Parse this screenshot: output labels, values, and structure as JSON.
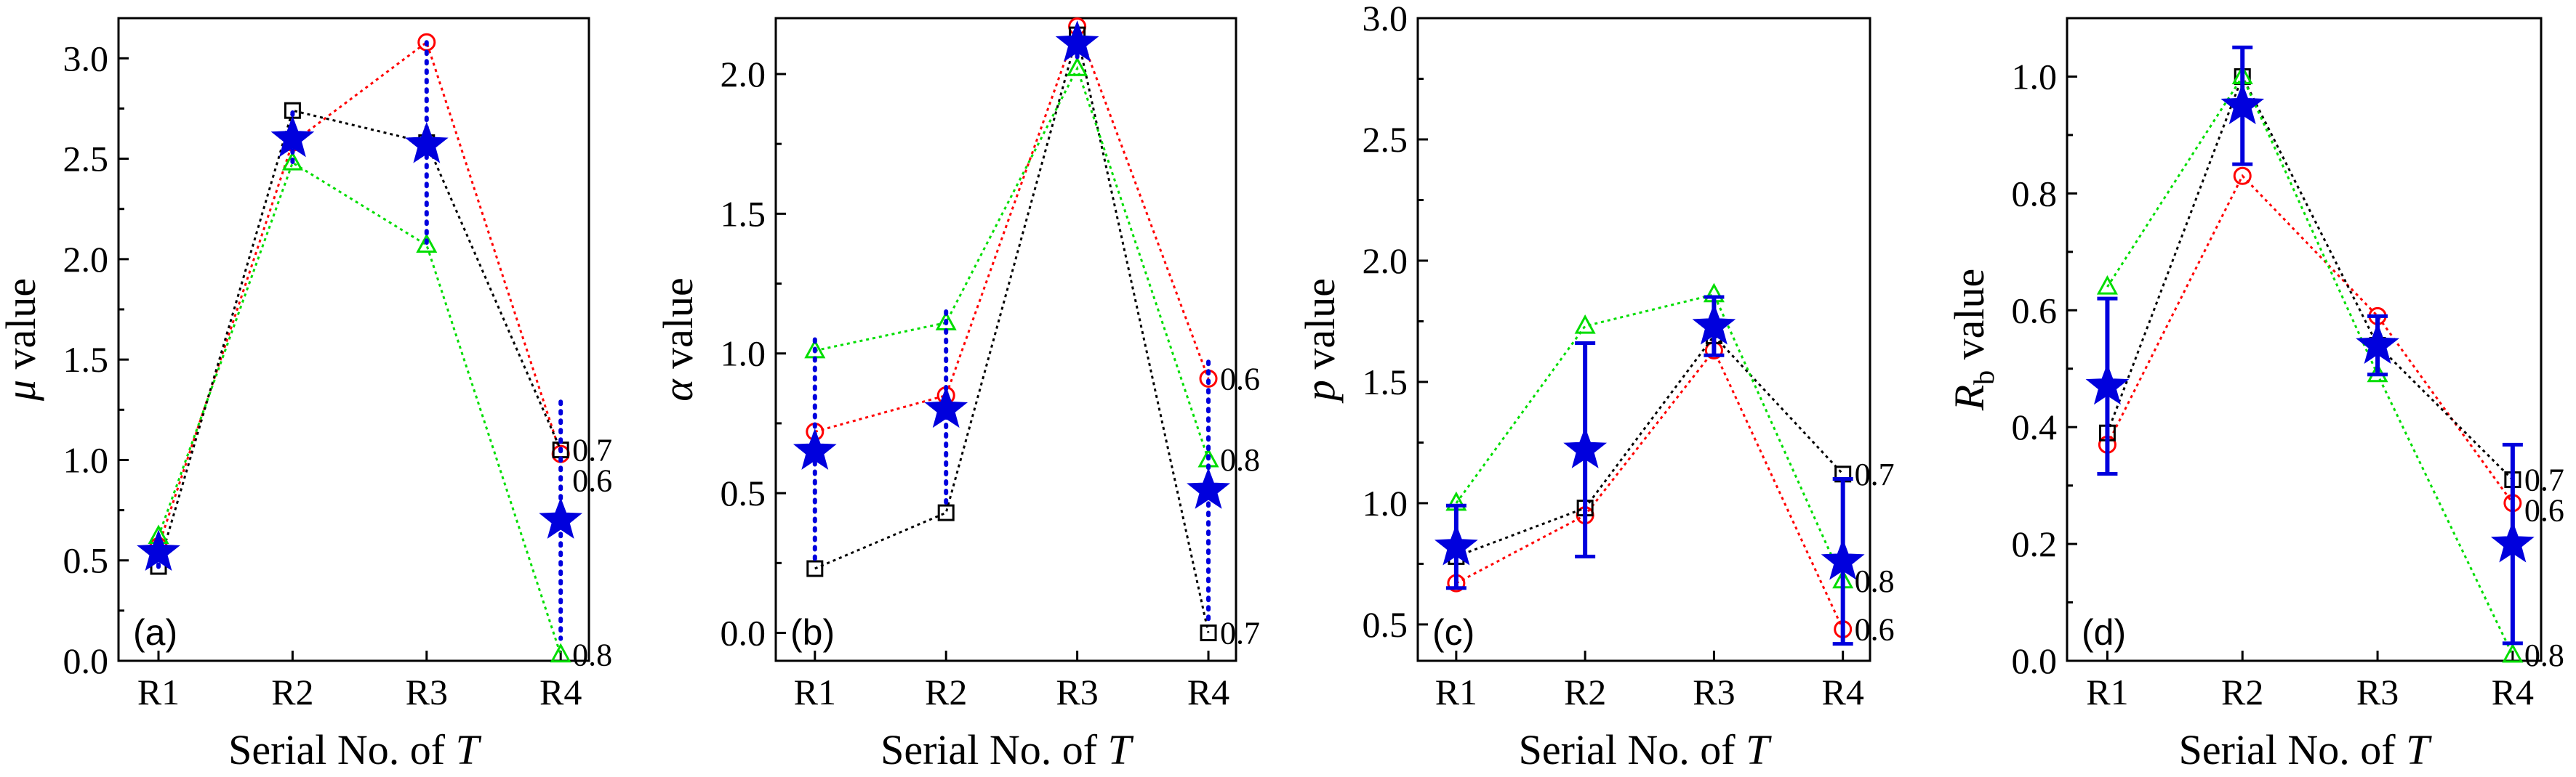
{
  "x_axis_label_prefix": "Serial No. of ",
  "x_axis_label_symbol": "T",
  "categories": [
    "R1",
    "R2",
    "R3",
    "R4"
  ],
  "series_colors": {
    "0.6": "#ff0000",
    "0.7": "#000000",
    "0.8": "#00dd00",
    "mean": "#0000dd"
  },
  "marker_shapes": {
    "0.6": "circle",
    "0.7": "square",
    "0.8": "triangle",
    "mean": "star"
  },
  "chart_data": [
    {
      "type": "line",
      "panel": "(a)",
      "ylabel_symbol": "μ",
      "ylabel_sub": "",
      "ylabel_text": " value",
      "ylim": [
        0.0,
        3.2
      ],
      "yticks": [
        "0.0",
        "0.5",
        "1.0",
        "1.5",
        "2.0",
        "2.5",
        "3.0"
      ],
      "tick_values": [
        0.0,
        0.5,
        1.0,
        1.5,
        2.0,
        2.5,
        3.0
      ],
      "categories": [
        "R1",
        "R2",
        "R3",
        "R4"
      ],
      "series": [
        {
          "key": "0.6",
          "values": [
            0.57,
            2.58,
            3.08,
            1.03
          ]
        },
        {
          "key": "0.7",
          "values": [
            0.47,
            2.74,
            2.58,
            1.05
          ]
        },
        {
          "key": "0.8",
          "values": [
            0.62,
            2.48,
            2.07,
            0.03
          ]
        }
      ],
      "mean": [
        0.54,
        2.6,
        2.57,
        0.7
      ],
      "mean_err": [
        0.08,
        0.13,
        0.51,
        0.59
      ],
      "err_style": "dotted",
      "end_labels": [
        "0.6",
        "0.7",
        "0.8"
      ]
    },
    {
      "type": "line",
      "panel": "(b)",
      "ylabel_symbol": "α",
      "ylabel_sub": "",
      "ylabel_text": " value",
      "ylim": [
        -0.1,
        2.2
      ],
      "yticks": [
        "0.0",
        "0.5",
        "1.0",
        "1.5",
        "2.0"
      ],
      "tick_values": [
        0.0,
        0.5,
        1.0,
        1.5,
        2.0
      ],
      "categories": [
        "R1",
        "R2",
        "R3",
        "R4"
      ],
      "series": [
        {
          "key": "0.6",
          "values": [
            0.72,
            0.85,
            2.17,
            0.91
          ]
        },
        {
          "key": "0.7",
          "values": [
            0.23,
            0.43,
            2.14,
            0.0
          ]
        },
        {
          "key": "0.8",
          "values": [
            1.01,
            1.11,
            2.02,
            0.62
          ]
        }
      ],
      "mean": [
        0.65,
        0.8,
        2.11,
        0.51
      ],
      "mean_err": [
        0.4,
        0.35,
        0.06,
        0.46
      ],
      "err_style": "dotted",
      "end_labels": [
        "0.6",
        "0.8",
        "0.7"
      ]
    },
    {
      "type": "line",
      "panel": "(c)",
      "ylabel_symbol": "p",
      "ylabel_sub": "",
      "ylabel_text": " value",
      "ylim": [
        0.35,
        3.0
      ],
      "yticks": [
        "0.5",
        "1.0",
        "1.5",
        "2.0",
        "2.5",
        "3.0"
      ],
      "tick_values": [
        0.5,
        1.0,
        1.5,
        2.0,
        2.5,
        3.0
      ],
      "categories": [
        "R1",
        "R2",
        "R3",
        "R4"
      ],
      "series": [
        {
          "key": "0.6",
          "values": [
            0.67,
            0.95,
            1.63,
            0.48
          ]
        },
        {
          "key": "0.7",
          "values": [
            0.78,
            0.98,
            1.69,
            1.12
          ]
        },
        {
          "key": "0.8",
          "values": [
            1.0,
            1.73,
            1.86,
            0.68
          ]
        }
      ],
      "mean": [
        0.82,
        1.22,
        1.73,
        0.76
      ],
      "mean_err": [
        0.17,
        0.44,
        0.12,
        0.34
      ],
      "err_style": "solid",
      "end_labels": [
        "0.7",
        "0.8",
        "0.6"
      ]
    },
    {
      "type": "line",
      "panel": "(d)",
      "ylabel_symbol": "R",
      "ylabel_sub": "b",
      "ylabel_text": " value",
      "ylim": [
        0.0,
        1.1
      ],
      "yticks": [
        "0.0",
        "0.2",
        "0.4",
        "0.6",
        "0.8",
        "1.0"
      ],
      "tick_values": [
        0.0,
        0.2,
        0.4,
        0.6,
        0.8,
        1.0
      ],
      "categories": [
        "R1",
        "R2",
        "R3",
        "R4"
      ],
      "series": [
        {
          "key": "0.6",
          "values": [
            0.37,
            0.83,
            0.59,
            0.27
          ]
        },
        {
          "key": "0.7",
          "values": [
            0.39,
            1.0,
            0.54,
            0.31
          ]
        },
        {
          "key": "0.8",
          "values": [
            0.64,
            1.0,
            0.49,
            0.01
          ]
        }
      ],
      "mean": [
        0.47,
        0.95,
        0.54,
        0.2
      ],
      "mean_err": [
        0.15,
        0.1,
        0.05,
        0.17
      ],
      "err_style": "solid",
      "end_labels": [
        "0.7",
        "0.6",
        "0.8"
      ]
    }
  ]
}
